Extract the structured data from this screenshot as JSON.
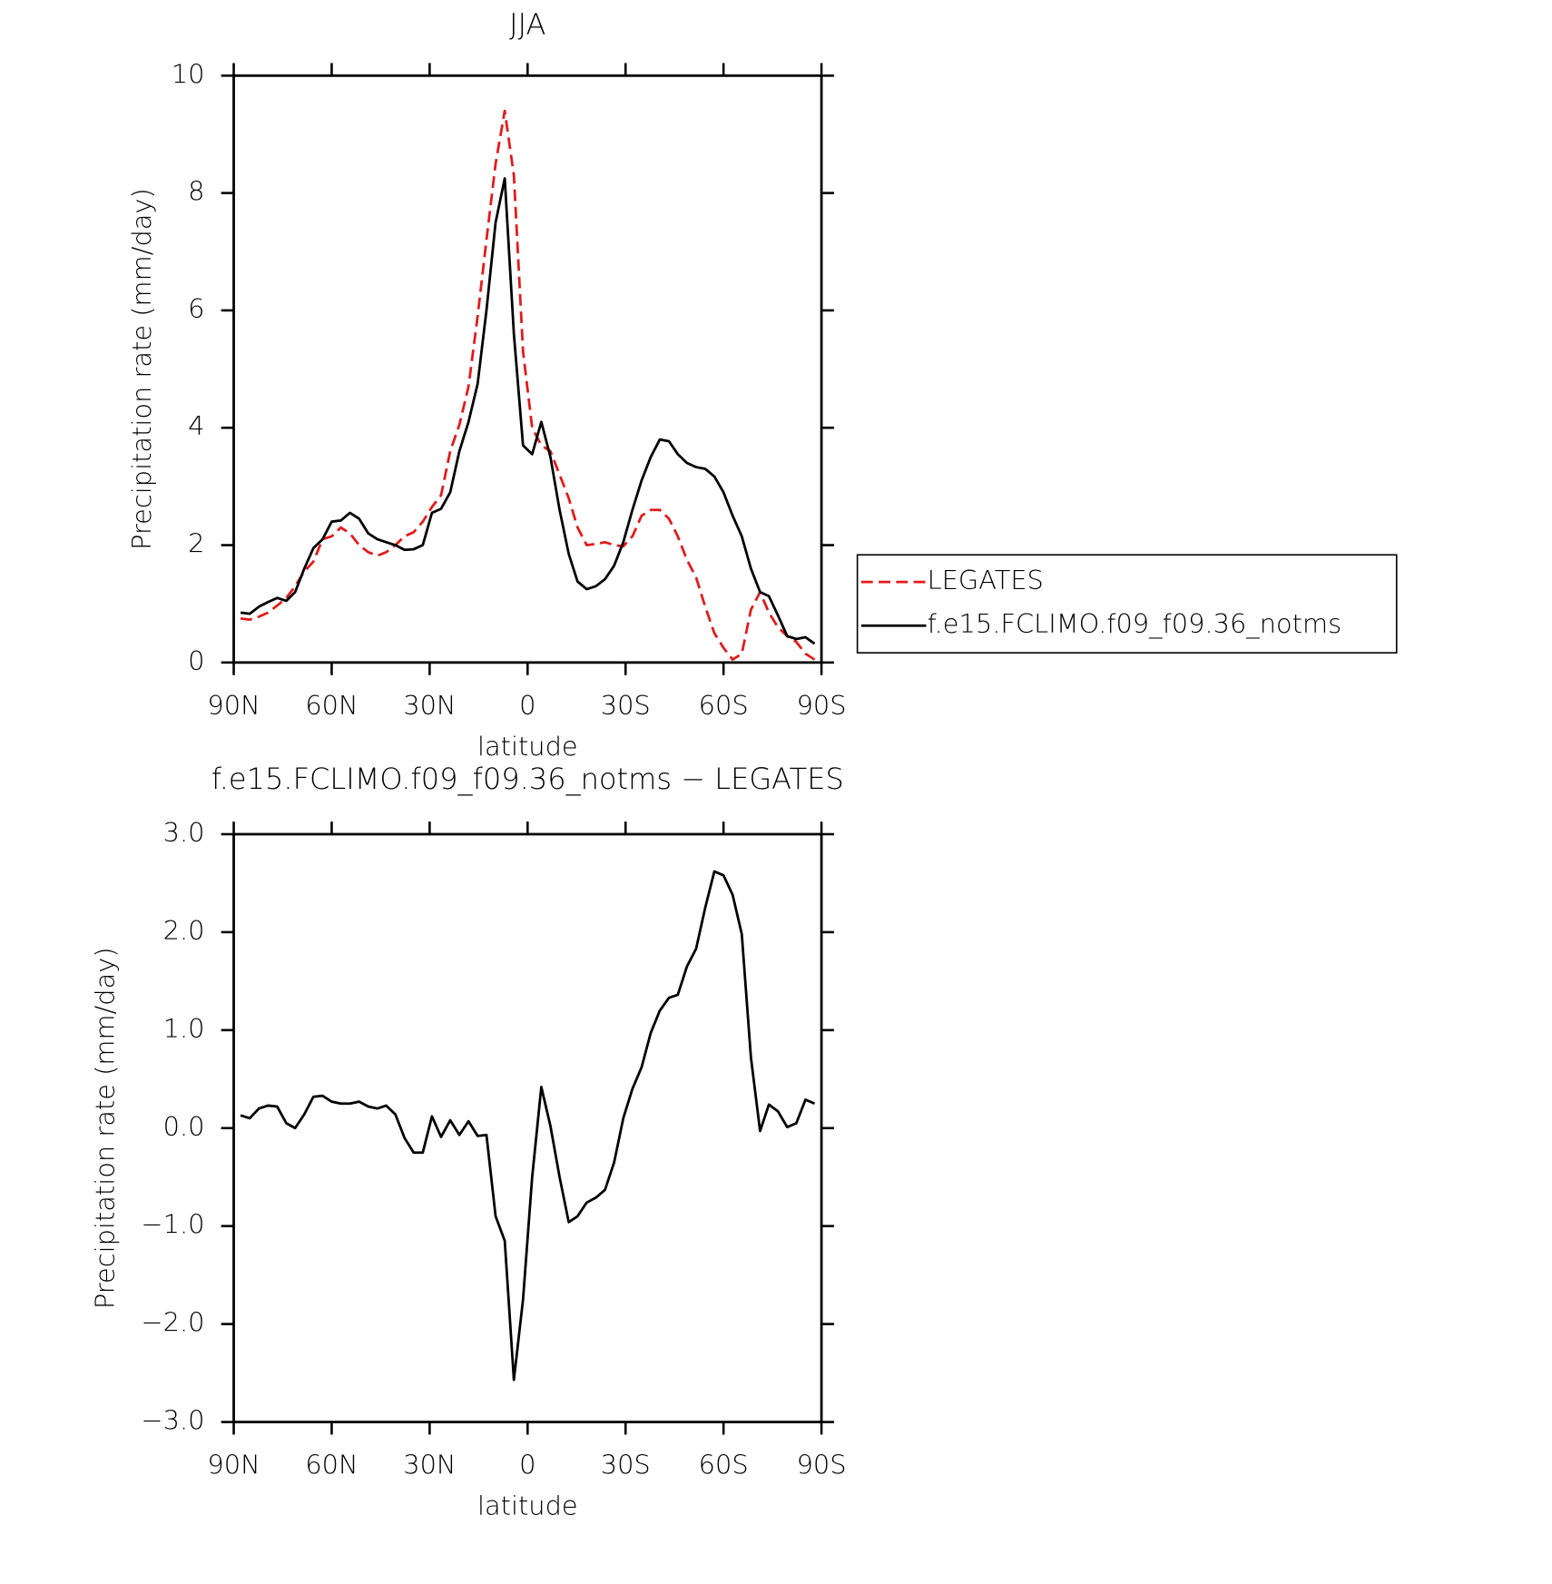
{
  "chart_data": [
    {
      "type": "line",
      "title": "JJA",
      "xlabel": "latitude",
      "ylabel": "Precipitation rate (mm/day)",
      "x": [
        87.9,
        85.1,
        82.3,
        79.5,
        76.7,
        73.9,
        71.2,
        68.4,
        65.6,
        62.8,
        60.0,
        57.2,
        54.4,
        51.6,
        48.8,
        46.0,
        43.3,
        40.5,
        37.7,
        34.9,
        32.1,
        29.3,
        26.5,
        23.7,
        20.9,
        18.1,
        15.3,
        12.6,
        9.8,
        7.0,
        4.2,
        1.4,
        -1.4,
        -4.2,
        -7.0,
        -9.8,
        -12.6,
        -15.3,
        -18.1,
        -20.9,
        -23.7,
        -26.5,
        -29.3,
        -32.1,
        -34.9,
        -37.7,
        -40.5,
        -43.3,
        -46.0,
        -48.8,
        -51.6,
        -54.4,
        -57.2,
        -60.0,
        -62.8,
        -65.6,
        -68.4,
        -71.2,
        -73.9,
        -76.7,
        -79.5,
        -82.3,
        -85.1,
        -87.9
      ],
      "xlim": [
        90,
        -90
      ],
      "xticks": [
        {
          "value": 90,
          "label": "90N"
        },
        {
          "value": 60,
          "label": "60N"
        },
        {
          "value": 30,
          "label": "30N"
        },
        0,
        {
          "value": -30,
          "label": "30S"
        },
        {
          "value": -60,
          "label": "60S"
        },
        {
          "value": -90,
          "label": "90S"
        }
      ],
      "ylim": [
        0,
        10
      ],
      "yticks": [
        0,
        2,
        4,
        6,
        8,
        10
      ],
      "legend": "right",
      "series": [
        {
          "name": "LEGATES",
          "color": "#e41a1c",
          "line_style": "dashed",
          "values": [
            0.75,
            0.73,
            0.78,
            0.85,
            0.97,
            1.1,
            1.3,
            1.55,
            1.72,
            2.1,
            2.15,
            2.3,
            2.2,
            2.0,
            1.88,
            1.82,
            1.88,
            2.0,
            2.15,
            2.22,
            2.4,
            2.65,
            2.85,
            3.6,
            4.05,
            4.7,
            5.9,
            7.2,
            8.5,
            9.4,
            8.3,
            5.3,
            4.0,
            3.7,
            3.6,
            3.2,
            2.8,
            2.3,
            2.0,
            2.02,
            2.05,
            2.0,
            1.98,
            2.15,
            2.5,
            2.6,
            2.6,
            2.45,
            2.15,
            1.75,
            1.45,
            0.95,
            0.5,
            0.25,
            0.05,
            0.15,
            0.9,
            1.2,
            0.85,
            0.6,
            0.45,
            0.35,
            0.15,
            0.05
          ]
        },
        {
          "name": "f.e15.FCLIMO.f09_f09.36_notms",
          "color": "#000000",
          "line_style": "solid",
          "values": [
            0.85,
            0.83,
            0.95,
            1.03,
            1.1,
            1.05,
            1.2,
            1.6,
            1.95,
            2.1,
            2.4,
            2.42,
            2.55,
            2.45,
            2.2,
            2.1,
            2.05,
            2.0,
            1.92,
            1.93,
            2.0,
            2.55,
            2.62,
            2.9,
            3.6,
            4.1,
            4.75,
            6.0,
            7.5,
            8.25,
            5.6,
            3.7,
            3.55,
            4.1,
            3.5,
            2.6,
            1.85,
            1.38,
            1.25,
            1.3,
            1.42,
            1.65,
            2.05,
            2.6,
            3.1,
            3.5,
            3.8,
            3.77,
            3.55,
            3.4,
            3.33,
            3.3,
            3.17,
            2.9,
            2.5,
            2.15,
            1.6,
            1.2,
            1.13,
            0.8,
            0.45,
            0.4,
            0.43,
            0.32
          ]
        }
      ]
    },
    {
      "type": "line",
      "title": "f.e15.FCLIMO.f09_f09.36_notms − LEGATES",
      "xlabel": "latitude",
      "ylabel": "Precipitation rate (mm/day)",
      "x": [
        87.9,
        85.1,
        82.3,
        79.5,
        76.7,
        73.9,
        71.2,
        68.4,
        65.6,
        62.8,
        60.0,
        57.2,
        54.4,
        51.6,
        48.8,
        46.0,
        43.3,
        40.5,
        37.7,
        34.9,
        32.1,
        29.3,
        26.5,
        23.7,
        20.9,
        18.1,
        15.3,
        12.6,
        9.8,
        7.0,
        4.2,
        1.4,
        -1.4,
        -4.2,
        -7.0,
        -9.8,
        -12.6,
        -15.3,
        -18.1,
        -20.9,
        -23.7,
        -26.5,
        -29.3,
        -32.1,
        -34.9,
        -37.7,
        -40.5,
        -43.3,
        -46.0,
        -48.8,
        -51.6,
        -54.4,
        -57.2,
        -60.0,
        -62.8,
        -65.6,
        -68.4,
        -71.2,
        -73.9,
        -76.7,
        -79.5,
        -82.3,
        -85.1,
        -87.9
      ],
      "xlim": [
        90,
        -90
      ],
      "xticks": [
        {
          "value": 90,
          "label": "90N"
        },
        {
          "value": 60,
          "label": "60N"
        },
        {
          "value": 30,
          "label": "30N"
        },
        0,
        {
          "value": -30,
          "label": "30S"
        },
        {
          "value": -60,
          "label": "60S"
        },
        {
          "value": -90,
          "label": "90S"
        }
      ],
      "ylim": [
        -3,
        3
      ],
      "yticks": [
        {
          "value": -3,
          "label": "−3.0"
        },
        {
          "value": -2,
          "label": "−2.0"
        },
        {
          "value": -1,
          "label": "−1.0"
        },
        {
          "value": 0,
          "label": "0.0"
        },
        {
          "value": 1,
          "label": "1.0"
        },
        {
          "value": 2,
          "label": "2.0"
        },
        {
          "value": 3,
          "label": "3.0"
        }
      ],
      "series": [
        {
          "color": "#000000",
          "line_style": "solid",
          "values": [
            0.13,
            0.1,
            0.2,
            0.23,
            0.22,
            0.05,
            0.0,
            0.14,
            0.32,
            0.33,
            0.27,
            0.25,
            0.25,
            0.27,
            0.22,
            0.2,
            0.23,
            0.14,
            -0.1,
            -0.25,
            -0.25,
            0.12,
            -0.09,
            0.08,
            -0.07,
            0.07,
            -0.08,
            -0.07,
            -0.9,
            -1.15,
            -2.57,
            -1.75,
            -0.5,
            0.42,
            0.02,
            -0.5,
            -0.96,
            -0.9,
            -0.76,
            -0.71,
            -0.63,
            -0.35,
            0.1,
            0.4,
            0.62,
            0.97,
            1.2,
            1.33,
            1.36,
            1.65,
            1.83,
            2.25,
            2.62,
            2.58,
            2.38,
            1.98,
            0.72,
            -0.03,
            0.24,
            0.17,
            0.01,
            0.05,
            0.29,
            0.25
          ]
        }
      ]
    }
  ]
}
